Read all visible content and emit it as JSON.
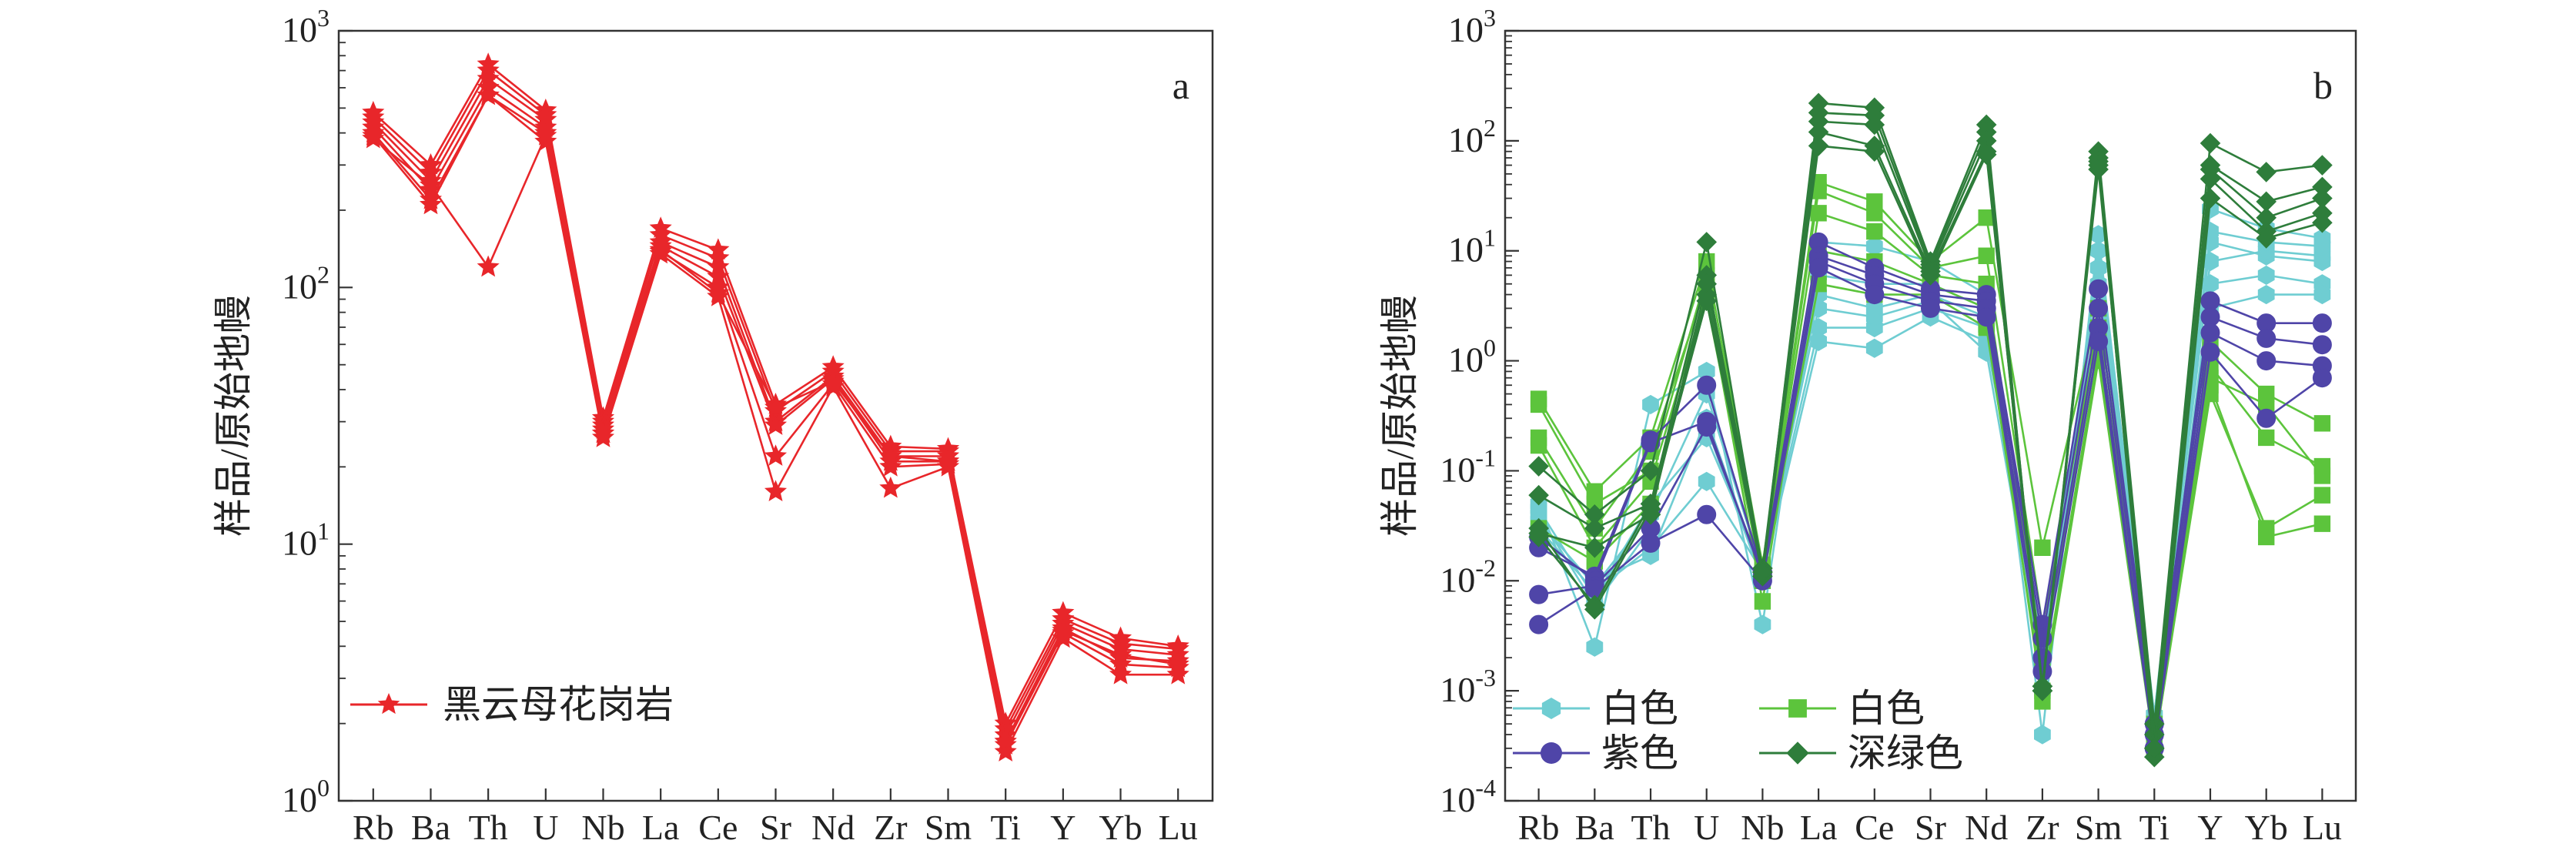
{
  "chart_data": [
    {
      "type": "line",
      "panel_label": "a",
      "ylabel": "样品/原始地幔",
      "yscale": "log",
      "ylim": [
        1,
        1000
      ],
      "y_ticks": [
        {
          "value": 1,
          "label": "10",
          "exp": "0"
        },
        {
          "value": 10,
          "label": "10",
          "exp": "1"
        },
        {
          "value": 100,
          "label": "10",
          "exp": "2"
        },
        {
          "value": 1000,
          "label": "10",
          "exp": "3"
        }
      ],
      "categories": [
        "Rb",
        "Ba",
        "Th",
        "U",
        "Nb",
        "La",
        "Ce",
        "Sr",
        "Nd",
        "Zr",
        "Sm",
        "Ti",
        "Y",
        "Yb",
        "Lu"
      ],
      "legend": [
        {
          "label": "黑云母花岗岩",
          "color": "#e8262a",
          "marker": "star"
        }
      ],
      "legend_position": "bottom-left",
      "series_groups": [
        {
          "group": "黑云母花岗岩",
          "color": "#e8262a",
          "marker": "star",
          "series": [
            [
              480,
              300,
              740,
              490,
              31,
              170,
              140,
              35,
              49,
              24,
              23.5,
              2.0,
              5.4,
              4.3,
              4.0
            ],
            [
              460,
              280,
              700,
              470,
              30,
              160,
              130,
              33,
              47,
              23,
              23,
              1.9,
              5.1,
              4.1,
              3.9
            ],
            [
              440,
              260,
              650,
              450,
              29,
              150,
              120,
              30,
              45,
              22,
              22,
              1.8,
              4.9,
              3.9,
              3.7
            ],
            [
              420,
              240,
              600,
              420,
              28,
              145,
              110,
              29,
              44,
              21,
              21,
              1.7,
              4.7,
              3.6,
              3.5
            ],
            [
              400,
              220,
              560,
              400,
              27,
              138,
              100,
              22,
              42,
              20,
              20.5,
              1.65,
              4.5,
              3.4,
              3.3
            ],
            [
              390,
              210,
              560,
              370,
              26,
              135,
              92,
              16,
              41,
              16.5,
              20,
              1.55,
              4.3,
              3.1,
              3.1
            ],
            [
              380,
              250,
              120,
              390,
              27,
              140,
              95,
              34,
              43,
              22,
              21,
              1.7,
              4.6,
              3.7,
              3.4
            ]
          ]
        }
      ]
    },
    {
      "type": "line",
      "panel_label": "b",
      "ylabel": "样品/原始地幔",
      "yscale": "log",
      "ylim": [
        0.0001,
        1000
      ],
      "y_ticks": [
        {
          "value": 0.0001,
          "label": "10",
          "exp": "-4"
        },
        {
          "value": 0.001,
          "label": "10",
          "exp": "-3"
        },
        {
          "value": 0.01,
          "label": "10",
          "exp": "-2"
        },
        {
          "value": 0.1,
          "label": "10",
          "exp": "-1"
        },
        {
          "value": 1,
          "label": "10",
          "exp": "0"
        },
        {
          "value": 10,
          "label": "10",
          "exp": "1"
        },
        {
          "value": 100,
          "label": "10",
          "exp": "2"
        },
        {
          "value": 1000,
          "label": "10",
          "exp": "3"
        }
      ],
      "categories": [
        "Rb",
        "Ba",
        "Th",
        "U",
        "Nb",
        "La",
        "Ce",
        "Sr",
        "Nd",
        "Zr",
        "Sm",
        "Ti",
        "Y",
        "Yb",
        "Lu"
      ],
      "legend": [
        {
          "label": "白色",
          "color": "#6fcdd2",
          "marker": "hexagon"
        },
        {
          "label": "白色",
          "color": "#5cc43c",
          "marker": "square"
        },
        {
          "label": "紫色",
          "color": "#4f45a8",
          "marker": "circle"
        },
        {
          "label": "深绿色",
          "color": "#2e7d3b",
          "marker": "diamond"
        }
      ],
      "legend_position": "bottom-left",
      "series_groups": [
        {
          "group": "白色",
          "color": "#6fcdd2",
          "marker": "hexagon",
          "series": [
            [
              0.05,
              0.0025,
              0.4,
              0.8,
              0.004,
              12,
              11,
              8,
              4,
              0.0004,
              14,
              0.0006,
              24,
              16,
              13
            ],
            [
              0.04,
              0.006,
              0.03,
              0.25,
              0.01,
              6,
              5,
              5,
              3,
              0.001,
              10,
              0.0005,
              12,
              9,
              8
            ],
            [
              0.03,
              0.008,
              0.02,
              0.08,
              0.012,
              2,
              2,
              3,
              2,
              0.002,
              3,
              0.0004,
              5,
              6,
              5
            ],
            [
              0.025,
              0.01,
              0.017,
              0.3,
              0.011,
              1.5,
              1.3,
              2.5,
              1.5,
              0.003,
              2,
              0.0003,
              3,
              4,
              4
            ],
            [
              0.045,
              0.007,
              0.05,
              0.2,
              0.013,
              3,
              2.5,
              3.5,
              1.2,
              0.0015,
              5,
              0.0005,
              8,
              10,
              9
            ],
            [
              0.035,
              0.009,
              0.04,
              0.5,
              0.012,
              4,
              3,
              4,
              2.5,
              0.002,
              7,
              0.0006,
              15,
              12,
              11
            ]
          ]
        },
        {
          "group": "白色",
          "color": "#5cc43c",
          "marker": "square",
          "series": [
            [
              0.45,
              0.065,
              0.2,
              8,
              0.014,
              42,
              28,
              8,
              20,
              0.02,
              3,
              0.0005,
              1.5,
              0.5,
              0.27
            ],
            [
              0.4,
              0.05,
              0.1,
              6,
              0.013,
              35,
              22,
              7,
              9,
              0.004,
              2,
              0.0004,
              0.9,
              0.2,
              0.11
            ],
            [
              0.2,
              0.03,
              0.15,
              5,
              0.012,
              22,
              15,
              6,
              5,
              0.002,
              1.5,
              0.0003,
              0.6,
              0.025,
              0.033
            ],
            [
              0.17,
              0.02,
              0.08,
              4,
              0.0065,
              10,
              8,
              5,
              3,
              0.0008,
              1,
              0.0003,
              0.5,
              0.03,
              0.06
            ],
            [
              0.03,
              0.015,
              0.05,
              3.5,
              0.01,
              5,
              4,
              4,
              2,
              0.001,
              1.2,
              0.0004,
              0.7,
              0.4,
              0.09
            ]
          ]
        },
        {
          "group": "紫色",
          "color": "#4f45a8",
          "marker": "circle",
          "series": [
            [
              0.02,
              0.011,
              0.19,
              0.6,
              0.012,
              12,
              7,
              4.5,
              4,
              0.004,
              4.5,
              0.0005,
              3.5,
              2.2,
              2.2
            ],
            [
              0.025,
              0.01,
              0.18,
              0.28,
              0.011,
              9,
              6,
              4,
              3.5,
              0.003,
              3,
              0.0004,
              2.5,
              1.6,
              1.4
            ],
            [
              0.0075,
              0.009,
              0.03,
              0.25,
              0.012,
              8,
              5,
              3.5,
              3,
              0.002,
              2,
              0.0003,
              1.8,
              1.0,
              0.9
            ],
            [
              0.004,
              0.0085,
              0.022,
              0.04,
              0.01,
              7,
              4,
              3,
              2.5,
              0.0015,
              1.5,
              0.0003,
              1.2,
              0.3,
              0.7
            ]
          ]
        },
        {
          "group": "深绿色",
          "color": "#2e7d3b",
          "marker": "diamond",
          "series": [
            [
              0.11,
              0.04,
              0.1,
              12,
              0.012,
              220,
              200,
              8,
              140,
              0.001,
              80,
              0.0005,
              95,
              52,
              60
            ],
            [
              0.06,
              0.03,
              0.05,
              6,
              0.013,
              180,
              170,
              7.5,
              120,
              0.0011,
              70,
              0.0004,
              60,
              28,
              38
            ],
            [
              0.027,
              0.02,
              0.04,
              5,
              0.012,
              150,
              140,
              7,
              100,
              0.001,
              65,
              0.0003,
              55,
              20,
              30
            ],
            [
              0.025,
              0.006,
              0.05,
              4,
              0.011,
              120,
              90,
              6.5,
              80,
              0.001,
              60,
              0.00025,
              45,
              15,
              22
            ],
            [
              0.03,
              0.0055,
              0.045,
              3.5,
              0.012,
              90,
              80,
              6,
              75,
              0.0011,
              55,
              0.0003,
              30,
              13,
              18
            ]
          ]
        }
      ]
    }
  ]
}
